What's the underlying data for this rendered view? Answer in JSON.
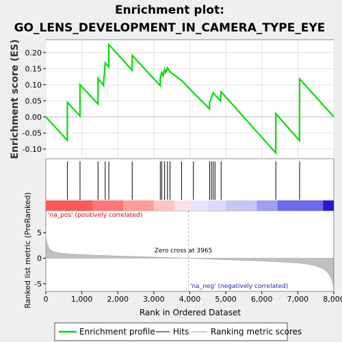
{
  "chart_data": {
    "type": "line",
    "title_line1": "Enrichment plot:",
    "title_line2": "GO_LENS_DEVELOPMENT_IN_CAMERA_TYPE_EYE",
    "es_ylabel": "Enrichment score (ES)",
    "rank_ylabel": "Ranked list metric (PreRanked)",
    "xlabel": "Rank in Ordered Dataset",
    "xlim": [
      0,
      8000
    ],
    "x_ticks": [
      0,
      1000,
      2000,
      3000,
      4000,
      5000,
      6000,
      7000,
      8000
    ],
    "x_tick_labels": [
      "0",
      "1,000",
      "2,000",
      "3,000",
      "4,000",
      "5,000",
      "6,000",
      "7,000",
      "8,000"
    ],
    "es_ylim": [
      -0.13,
      0.24
    ],
    "es_ticks": [
      -0.1,
      -0.05,
      0.0,
      0.05,
      0.1,
      0.15,
      0.2
    ],
    "es_tick_labels": [
      "-0.10",
      "-0.05",
      "0.00",
      "0.05",
      "0.10",
      "0.15",
      "0.20"
    ],
    "rank_ylim": [
      -6.5,
      9.3
    ],
    "rank_ticks": [
      -5,
      0,
      5
    ],
    "rank_tick_labels": [
      "-5",
      "0",
      "5"
    ],
    "hits": [
      600,
      950,
      1450,
      1650,
      1750,
      2400,
      3180,
      3220,
      3300,
      3380,
      3450,
      3770,
      4100,
      4550,
      4600,
      4650,
      4700,
      4870,
      6390,
      7050
    ],
    "es_curve": {
      "x": [
        0,
        598,
        600,
        948,
        950,
        1448,
        1450,
        1600,
        1650,
        1748,
        1750,
        2398,
        2400,
        3178,
        3180,
        3220,
        3260,
        3300,
        3330,
        3380,
        3400,
        3450,
        3770,
        3800,
        4100,
        4548,
        4550,
        4600,
        4650,
        4700,
        4850,
        4870,
        6388,
        6390,
        7048,
        7050,
        8000
      ],
      "y": [
        0.0,
        -0.073,
        0.045,
        0.003,
        0.1,
        0.04,
        0.12,
        0.098,
        0.168,
        0.155,
        0.225,
        0.145,
        0.191,
        0.097,
        0.12,
        0.138,
        0.128,
        0.148,
        0.138,
        0.152,
        0.148,
        0.14,
        0.113,
        0.11,
        0.075,
        0.025,
        0.045,
        0.06,
        0.075,
        0.068,
        0.05,
        0.078,
        -0.112,
        0.01,
        -0.074,
        0.118,
        0.0
      ]
    },
    "rank_metric_profile": {
      "x": [
        0,
        40,
        100,
        200,
        400,
        700,
        1000,
        1500,
        2000,
        3000,
        3965,
        5000,
        6000,
        6500,
        7000,
        7300,
        7500,
        7650,
        7750,
        7850,
        7920,
        7960,
        7990
      ],
      "y": [
        4.3,
        2.8,
        1.8,
        1.3,
        1.0,
        0.8,
        0.7,
        0.55,
        0.42,
        0.22,
        0.0,
        -0.3,
        -0.55,
        -0.72,
        -0.95,
        -1.2,
        -1.5,
        -1.9,
        -2.3,
        -3.0,
        -3.8,
        -4.6,
        -5.5
      ]
    },
    "zero_cross_label": "Zero cross at 3965",
    "zero_cross_x": 3965,
    "pos_label": "'na_pos' (positively correlated)",
    "neg_label": "'na_neg' (negatively correlated)",
    "colorbar": [
      {
        "x0": 0,
        "x1": 1300,
        "color": "#ff5a5a"
      },
      {
        "x0": 1300,
        "x1": 2150,
        "color": "#ff7878"
      },
      {
        "x0": 2150,
        "x1": 3000,
        "color": "#ff9c9c"
      },
      {
        "x0": 3000,
        "x1": 3560,
        "color": "#ffc4c4"
      },
      {
        "x0": 3560,
        "x1": 4000,
        "color": "#ffe0e8"
      },
      {
        "x0": 4000,
        "x1": 4500,
        "color": "#e6e6fa"
      },
      {
        "x0": 4500,
        "x1": 5000,
        "color": "#dcdcfa"
      },
      {
        "x0": 5000,
        "x1": 5860,
        "color": "#c6c6f6"
      },
      {
        "x0": 5860,
        "x1": 6440,
        "color": "#9e9ef2"
      },
      {
        "x0": 6440,
        "x1": 7700,
        "color": "#6a6aee"
      },
      {
        "x0": 7700,
        "x1": 8000,
        "color": "#2a16d6"
      }
    ],
    "legend": [
      "Enrichment profile",
      "Hits",
      "Ranking metric scores"
    ],
    "colors": {
      "profile": "#00dd00",
      "hits": "#000000",
      "metric": "#c0c0c0",
      "pos": "#dd0000",
      "neg": "#2222bb"
    }
  }
}
